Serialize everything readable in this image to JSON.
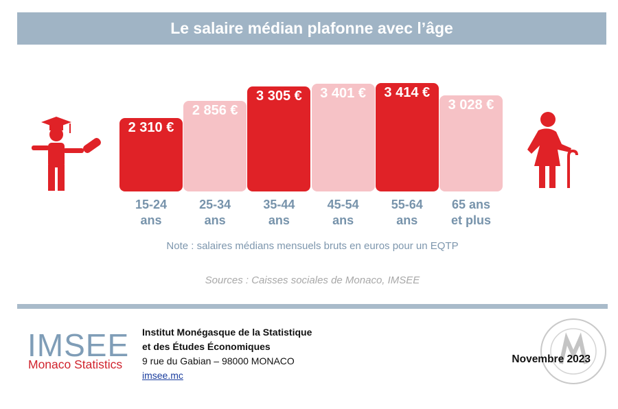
{
  "chart_data": {
    "type": "bar",
    "title": "Le salaire médian plafonne avec l’âge",
    "categories": [
      "15-24 ans",
      "25-34 ans",
      "35-44 ans",
      "45-54 ans",
      "55-64 ans",
      "65 ans et plus"
    ],
    "values": [
      2310,
      2856,
      3305,
      3401,
      3414,
      3028
    ],
    "value_labels": [
      "2 310 €",
      "2 856 €",
      "3 305 €",
      "3 401 €",
      "3 414 €",
      "3 028 €"
    ],
    "colors": [
      "#e02227",
      "#f6c2c6",
      "#e02227",
      "#f6c2c6",
      "#e02227",
      "#f6c2c6"
    ],
    "note": "Note : salaires médians mensuels bruts en euros pour un EQTP",
    "source": "Sources : Caisses sociales de Monaco, IMSEE"
  },
  "footer": {
    "logo": "IMSEE",
    "logo_subtitle": "Monaco Statistics",
    "institution_line1": "Institut Monégasque de la Statistique",
    "institution_line2": "et des Études Économiques",
    "address": "9 rue du Gabian – 98000 MONACO",
    "link": "imsee.mc",
    "date": "Novembre 2023"
  }
}
